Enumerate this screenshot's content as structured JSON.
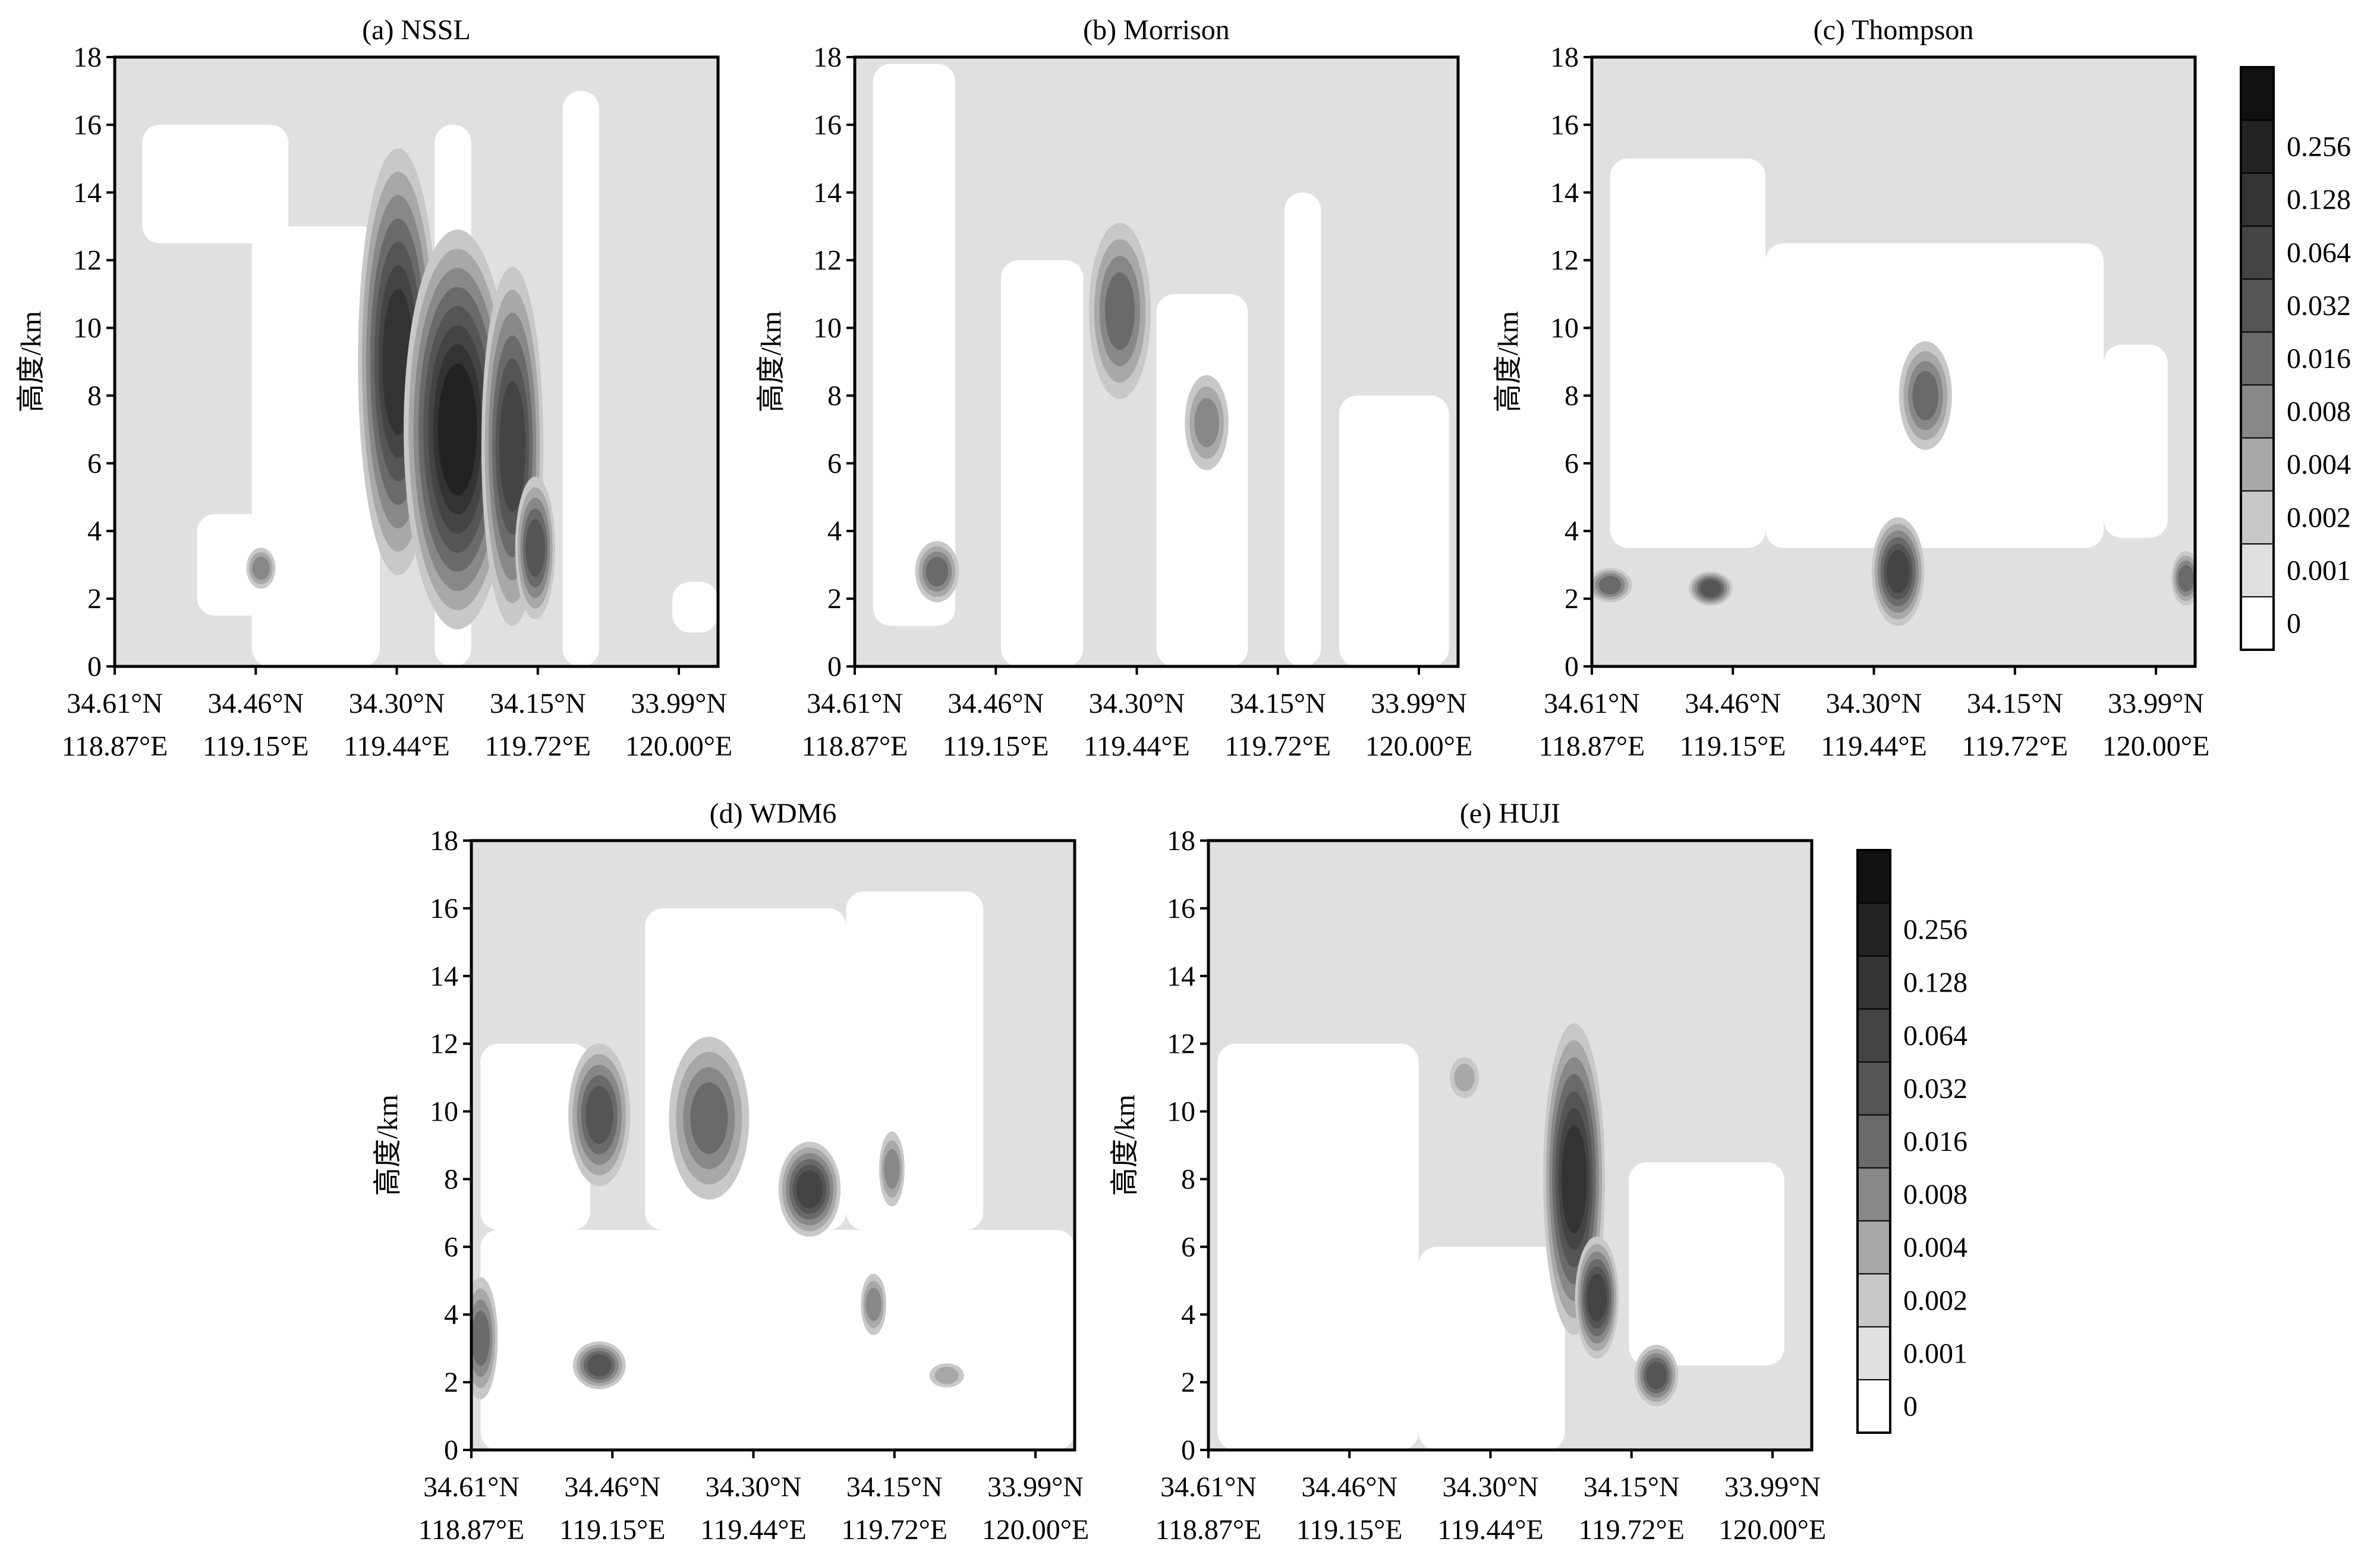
{
  "figure": {
    "ylabel": "高度/km",
    "y_ticks": [
      "0",
      "2",
      "4",
      "6",
      "8",
      "10",
      "12",
      "14",
      "16",
      "18"
    ],
    "x_ticks": [
      {
        "lat": "34.61°N",
        "lon": "118.87°E"
      },
      {
        "lat": "34.46°N",
        "lon": "119.15°E"
      },
      {
        "lat": "34.30°N",
        "lon": "119.44°E"
      },
      {
        "lat": "34.15°N",
        "lon": "119.72°E"
      },
      {
        "lat": "33.99°N",
        "lon": "120.00°E"
      }
    ],
    "colorbar_levels": [
      "0",
      "0.001",
      "0.002",
      "0.004",
      "0.008",
      "0.016",
      "0.032",
      "0.064",
      "0.128",
      "0.256"
    ],
    "colors": {
      "level_0": "#ffffff",
      "level_1": "#e0e0e0",
      "level_2": "#c8c8c8",
      "level_3": "#a8a8a8",
      "level_4": "#888888",
      "level_5": "#6a6a6a",
      "level_6": "#555555",
      "level_7": "#444444",
      "level_8": "#333333",
      "level_9": "#222222",
      "level_10": "#111111"
    }
  },
  "chart_data": [
    {
      "type": "heatmap",
      "title": "(a) NSSL",
      "ylabel": "高度/km",
      "x_range_lat": [
        34.61,
        33.95
      ],
      "ylim": [
        0,
        18
      ],
      "features": [
        {
          "kind": "background",
          "level": 1
        },
        {
          "kind": "clear",
          "x": [
            34.58,
            34.42
          ],
          "y": [
            12.5,
            16
          ]
        },
        {
          "kind": "clear",
          "x": [
            34.46,
            34.32
          ],
          "y": [
            0,
            13
          ]
        },
        {
          "kind": "clear",
          "x": [
            34.26,
            34.22
          ],
          "y": [
            0,
            16
          ]
        },
        {
          "kind": "clear",
          "x": [
            34.12,
            34.08
          ],
          "y": [
            0,
            17
          ]
        },
        {
          "kind": "clear",
          "x": [
            34.52,
            34.38
          ],
          "y": [
            1.5,
            4.5
          ]
        },
        {
          "kind": "clear",
          "x": [
            34.0,
            33.95
          ],
          "y": [
            1,
            2.5
          ]
        },
        {
          "kind": "cell",
          "lat": 34.3,
          "z": 9.0,
          "lat_halfwidth": 0.04,
          "z_halfheight": 6.2,
          "peak": 8
        },
        {
          "kind": "cell",
          "lat": 34.235,
          "z": 7.0,
          "lat_halfwidth": 0.055,
          "z_halfheight": 5.8,
          "peak": 9
        },
        {
          "kind": "cell",
          "lat": 34.175,
          "z": 6.5,
          "lat_halfwidth": 0.03,
          "z_halfheight": 5.2,
          "peak": 7
        },
        {
          "kind": "cell",
          "lat": 34.15,
          "z": 3.5,
          "lat_halfwidth": 0.018,
          "z_halfheight": 2.0,
          "peak": 6
        },
        {
          "kind": "cell",
          "lat": 34.45,
          "z": 2.9,
          "lat_halfwidth": 0.012,
          "z_halfheight": 0.5,
          "peak": 4
        }
      ]
    },
    {
      "type": "heatmap",
      "title": "(b) Morrison",
      "ylabel": "高度/km",
      "x_range_lat": [
        34.61,
        33.95
      ],
      "ylim": [
        0,
        18
      ],
      "features": [
        {
          "kind": "background",
          "level": 1
        },
        {
          "kind": "clear",
          "x": [
            34.59,
            34.5
          ],
          "y": [
            1.2,
            17.8
          ]
        },
        {
          "kind": "clear",
          "x": [
            34.45,
            34.36
          ],
          "y": [
            0,
            12
          ]
        },
        {
          "kind": "clear",
          "x": [
            34.28,
            34.18
          ],
          "y": [
            0,
            11
          ]
        },
        {
          "kind": "clear",
          "x": [
            34.14,
            34.1
          ],
          "y": [
            0,
            14
          ]
        },
        {
          "kind": "clear",
          "x": [
            34.08,
            33.96
          ],
          "y": [
            0,
            8
          ]
        },
        {
          "kind": "cell",
          "lat": 34.32,
          "z": 10.5,
          "lat_halfwidth": 0.03,
          "z_halfheight": 2.5,
          "peak": 5
        },
        {
          "kind": "cell",
          "lat": 34.225,
          "z": 7.2,
          "lat_halfwidth": 0.02,
          "z_halfheight": 1.3,
          "peak": 4
        },
        {
          "kind": "cell",
          "lat": 34.52,
          "z": 2.8,
          "lat_halfwidth": 0.02,
          "z_halfheight": 0.8,
          "peak": 5
        }
      ]
    },
    {
      "type": "heatmap",
      "title": "(c) Thompson",
      "ylabel": "高度/km",
      "x_range_lat": [
        34.61,
        33.95
      ],
      "ylim": [
        0,
        18
      ],
      "features": [
        {
          "kind": "background",
          "level": 1
        },
        {
          "kind": "clear",
          "x": [
            34.59,
            34.42
          ],
          "y": [
            3.5,
            15
          ]
        },
        {
          "kind": "clear",
          "x": [
            34.42,
            34.05
          ],
          "y": [
            3.5,
            12.5
          ]
        },
        {
          "kind": "clear",
          "x": [
            34.05,
            33.98
          ],
          "y": [
            3.8,
            9.5
          ]
        },
        {
          "kind": "cell",
          "lat": 34.245,
          "z": 8.0,
          "lat_halfwidth": 0.025,
          "z_halfheight": 1.5,
          "peak": 5
        },
        {
          "kind": "cell",
          "lat": 34.275,
          "z": 2.8,
          "lat_halfwidth": 0.025,
          "z_halfheight": 1.5,
          "peak": 7
        },
        {
          "kind": "cell",
          "lat": 34.59,
          "z": 2.4,
          "lat_halfwidth": 0.02,
          "z_halfheight": 0.4,
          "peak": 5
        },
        {
          "kind": "cell",
          "lat": 34.48,
          "z": 2.3,
          "lat_halfwidth": 0.02,
          "z_halfheight": 0.4,
          "peak": 6
        },
        {
          "kind": "cell",
          "lat": 33.96,
          "z": 2.6,
          "lat_halfwidth": 0.012,
          "z_halfheight": 0.7,
          "peak": 5
        }
      ]
    },
    {
      "type": "heatmap",
      "title": "(d) WDM6",
      "ylabel": "高度/km",
      "x_range_lat": [
        34.61,
        33.95
      ],
      "ylim": [
        0,
        18
      ],
      "features": [
        {
          "kind": "background",
          "level": 1
        },
        {
          "kind": "clear",
          "x": [
            34.6,
            33.95
          ],
          "y": [
            0,
            6.5
          ]
        },
        {
          "kind": "clear",
          "x": [
            34.6,
            34.48
          ],
          "y": [
            6.5,
            12
          ]
        },
        {
          "kind": "clear",
          "x": [
            34.42,
            34.2
          ],
          "y": [
            6.5,
            16
          ]
        },
        {
          "kind": "clear",
          "x": [
            34.2,
            34.05
          ],
          "y": [
            6.5,
            16.5
          ]
        },
        {
          "kind": "cell",
          "lat": 34.47,
          "z": 9.9,
          "lat_halfwidth": 0.03,
          "z_halfheight": 2.0,
          "peak": 6
        },
        {
          "kind": "cell",
          "lat": 34.35,
          "z": 9.8,
          "lat_halfwidth": 0.04,
          "z_halfheight": 2.3,
          "peak": 5
        },
        {
          "kind": "cell",
          "lat": 34.24,
          "z": 7.7,
          "lat_halfwidth": 0.03,
          "z_halfheight": 1.3,
          "peak": 7
        },
        {
          "kind": "cell",
          "lat": 34.15,
          "z": 8.3,
          "lat_halfwidth": 0.01,
          "z_halfheight": 1.0,
          "peak": 4
        },
        {
          "kind": "cell",
          "lat": 34.6,
          "z": 3.3,
          "lat_halfwidth": 0.015,
          "z_halfheight": 1.7,
          "peak": 5
        },
        {
          "kind": "cell",
          "lat": 34.47,
          "z": 2.5,
          "lat_halfwidth": 0.025,
          "z_halfheight": 0.6,
          "peak": 6
        },
        {
          "kind": "cell",
          "lat": 34.17,
          "z": 4.3,
          "lat_halfwidth": 0.01,
          "z_halfheight": 0.8,
          "peak": 4
        },
        {
          "kind": "cell",
          "lat": 34.09,
          "z": 2.2,
          "lat_halfwidth": 0.015,
          "z_halfheight": 0.25,
          "peak": 3
        }
      ]
    },
    {
      "type": "heatmap",
      "title": "(e) HUJI",
      "ylabel": "高度/km",
      "x_range_lat": [
        34.61,
        33.95
      ],
      "ylim": [
        0,
        18
      ],
      "features": [
        {
          "kind": "background",
          "level": 1
        },
        {
          "kind": "clear",
          "x": [
            34.6,
            34.38
          ],
          "y": [
            0,
            12
          ]
        },
        {
          "kind": "clear",
          "x": [
            34.38,
            34.22
          ],
          "y": [
            0,
            6
          ]
        },
        {
          "kind": "clear",
          "x": [
            34.15,
            33.98
          ],
          "y": [
            2.5,
            8.5
          ]
        },
        {
          "kind": "cell",
          "lat": 34.21,
          "z": 8.0,
          "lat_halfwidth": 0.03,
          "z_halfheight": 4.5,
          "peak": 8
        },
        {
          "kind": "cell",
          "lat": 34.185,
          "z": 4.5,
          "lat_halfwidth": 0.02,
          "z_halfheight": 1.7,
          "peak": 7
        },
        {
          "kind": "cell",
          "lat": 34.12,
          "z": 2.2,
          "lat_halfwidth": 0.02,
          "z_halfheight": 0.8,
          "peak": 6
        },
        {
          "kind": "cell",
          "lat": 34.33,
          "z": 11.0,
          "lat_halfwidth": 0.012,
          "z_halfheight": 0.5,
          "peak": 3
        }
      ]
    }
  ]
}
